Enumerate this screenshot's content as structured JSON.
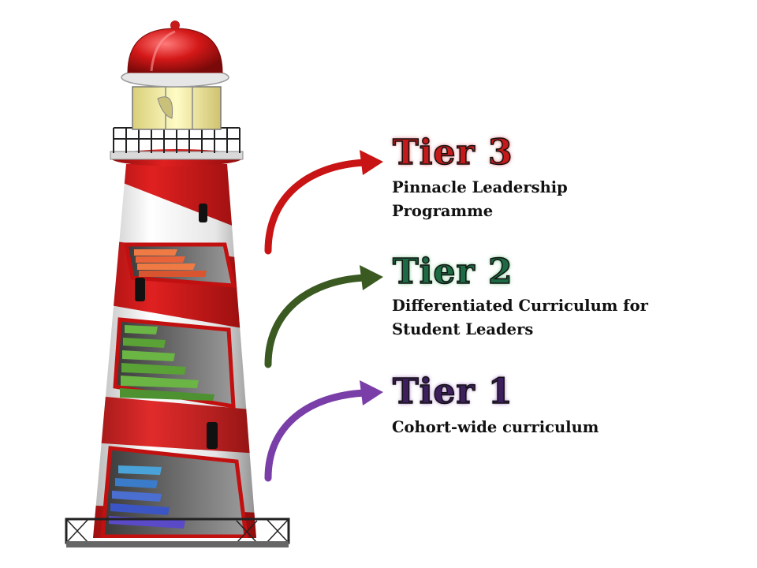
{
  "tiers": [
    {
      "title": "Tier 3",
      "desc_lines": [
        "Pinnacle Leadership",
        "Programme"
      ],
      "color": "#c41a1a",
      "glow": "#e8888c",
      "arrow": "#c81414"
    },
    {
      "title": "Tier 2",
      "desc_lines": [
        "Differentiated Curriculum for",
        "Student Leaders"
      ],
      "color": "#1d6b44",
      "glow": "#8ccf9c",
      "arrow": "#3b5a22"
    },
    {
      "title": "Tier 1",
      "desc_lines": [
        "Cohort-wide curriculum"
      ],
      "color": "#3d1f5e",
      "glow": "#b18acb",
      "arrow": "#7a3ea8"
    }
  ],
  "illustration": {
    "subject": "lighthouse",
    "stair_colors": [
      "#e8623a",
      "#6bb544",
      "#3a7cc9"
    ],
    "stripe_color": "#cc1717"
  }
}
